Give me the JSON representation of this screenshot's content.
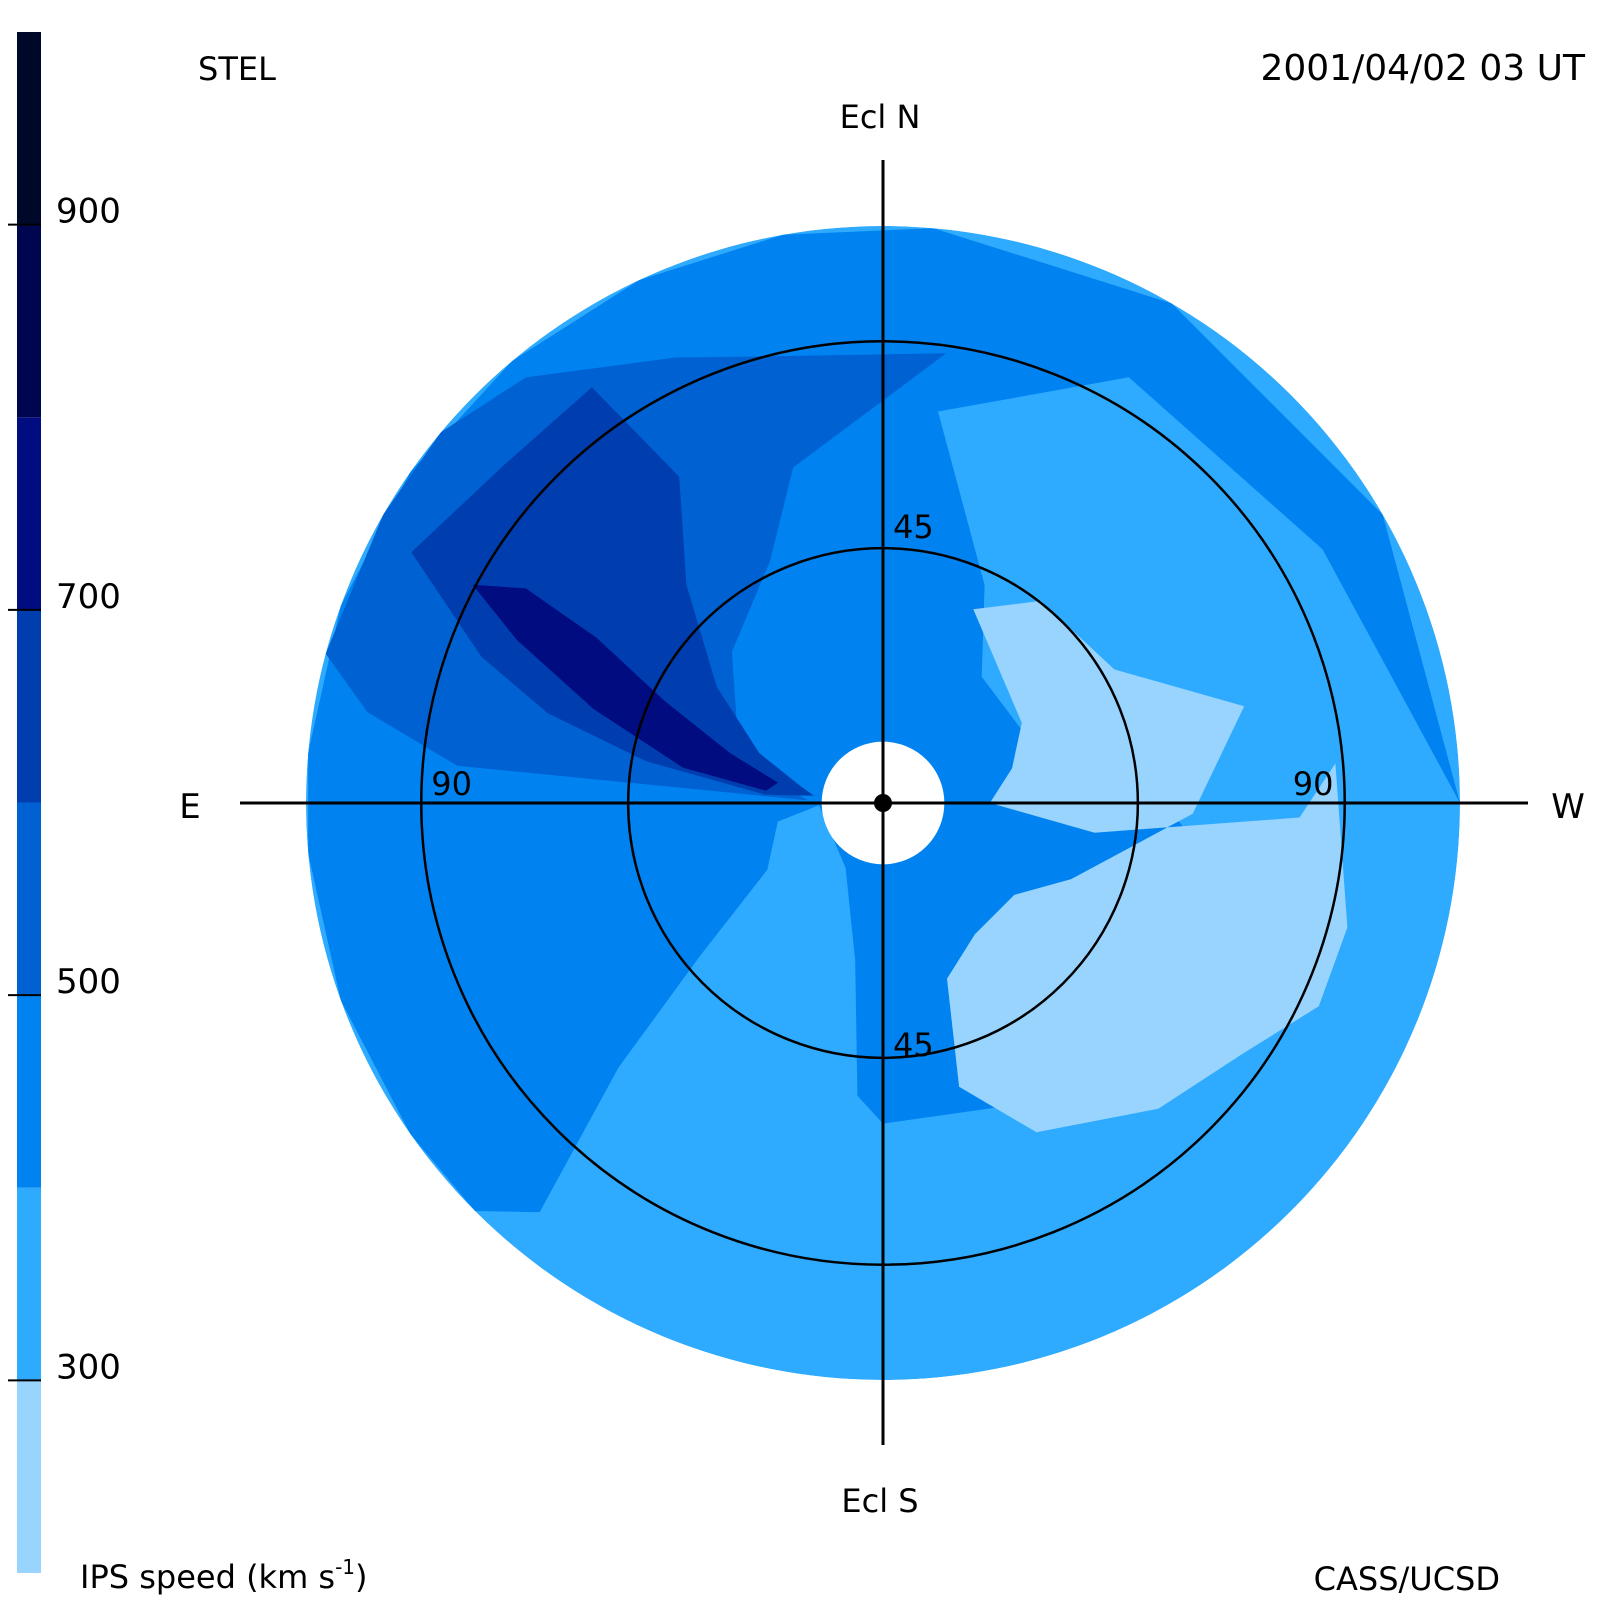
{
  "header": {
    "source": "STEL",
    "timestamp": "2001/04/02 03 UT"
  },
  "footer": {
    "credit": "CASS/UCSD"
  },
  "chart_data": {
    "type": "heatmap",
    "projection": "polar sky map centred on the Sun",
    "direction_labels": {
      "north": "Ecl N",
      "south": "Ecl S",
      "east": "E",
      "west": "W"
    },
    "elongation_circles": [
      {
        "value": 45,
        "labels": [
          "45",
          "45"
        ]
      },
      {
        "value": 90,
        "labels": [
          "90",
          "90"
        ]
      }
    ],
    "outer_elongation": 108,
    "occulted_elongation": 12,
    "colorbar": {
      "title": "IPS speed (km s",
      "title_sup": "-1",
      "title_end": ")",
      "range": [
        200,
        1000
      ],
      "ticks": [
        300,
        500,
        700,
        900
      ],
      "tick_labels": [
        "300",
        "500",
        "700",
        "900"
      ],
      "levels": [
        {
          "from": 200,
          "to": 300,
          "color": "#99d4ff"
        },
        {
          "from": 300,
          "to": 400,
          "color": "#2eaaff"
        },
        {
          "from": 400,
          "to": 500,
          "color": "#0083f0"
        },
        {
          "from": 500,
          "to": 600,
          "color": "#0061d3"
        },
        {
          "from": 600,
          "to": 700,
          "color": "#003eaf"
        },
        {
          "from": 700,
          "to": 800,
          "color": "#000c80"
        },
        {
          "from": 800,
          "to": 900,
          "color": "#000550"
        },
        {
          "from": 900,
          "to": 1000,
          "color": "#00082a"
        }
      ]
    },
    "background_speed": 350,
    "speed_regions": [
      {
        "speed": 450,
        "outline": [
          [
            270,
            108
          ],
          [
            300,
            108
          ],
          [
            330,
            108
          ],
          [
            355,
            108
          ],
          [
            10,
            108
          ],
          [
            25,
            108
          ],
          [
            40,
            108
          ],
          [
            55,
            108
          ],
          [
            70,
            108
          ],
          [
            85,
            108
          ],
          [
            95,
            108
          ],
          [
            110,
            108
          ],
          [
            125,
            108
          ],
          [
            135,
            108
          ],
          [
            140,
            100
          ],
          [
            135,
            70
          ],
          [
            130,
            45
          ],
          [
            120,
            25
          ],
          [
            100,
            20
          ],
          [
            92,
            12
          ],
          [
            150,
            14
          ],
          [
            170,
            30
          ],
          [
            175,
            55
          ],
          [
            180,
            60
          ],
          [
            220,
            70
          ],
          [
            260,
            62
          ],
          [
            278,
            48
          ],
          [
            290,
            38
          ],
          [
            292,
            30
          ],
          [
            322,
            30
          ],
          [
            335,
            45
          ],
          [
            352,
            74
          ],
          [
            330,
            92
          ],
          [
            300,
            95
          ]
        ]
      },
      {
        "speed": 550,
        "outline": [
          [
            352,
            85
          ],
          [
            10,
            85
          ],
          [
            25,
            92
          ],
          [
            40,
            104
          ],
          [
            50,
            108
          ],
          [
            60,
            108
          ],
          [
            75,
            108
          ],
          [
            80,
            98
          ],
          [
            85,
            80
          ],
          [
            88,
            14
          ],
          [
            80,
            20
          ],
          [
            65,
            30
          ],
          [
            45,
            40
          ],
          [
            25,
            50
          ],
          [
            15,
            65
          ]
        ]
      },
      {
        "speed": 650,
        "outline": [
          [
            35,
            95
          ],
          [
            48,
            95
          ],
          [
            62,
            100
          ],
          [
            70,
            80
          ],
          [
            75,
            65
          ],
          [
            80,
            45
          ],
          [
            86,
            22
          ],
          [
            84,
            13
          ],
          [
            78,
            16
          ],
          [
            68,
            25
          ],
          [
            55,
            38
          ],
          [
            42,
            55
          ],
          [
            32,
            72
          ]
        ]
      },
      {
        "speed": 750,
        "outline": [
          [
            62,
            87
          ],
          [
            66,
            75
          ],
          [
            72,
            57
          ],
          [
            80,
            38
          ],
          [
            84,
            22
          ],
          [
            79,
            20
          ],
          [
            72,
            30
          ],
          [
            65,
            45
          ],
          [
            60,
            62
          ],
          [
            59,
            78
          ]
        ]
      },
      {
        "speed": 250,
        "outline": [
          [
            255,
            90
          ],
          [
            245,
            90
          ],
          [
            235,
            82
          ],
          [
            222,
            77
          ],
          [
            205,
            68
          ],
          [
            195,
            55
          ],
          [
            200,
            35
          ],
          [
            215,
            30
          ],
          [
            235,
            30
          ],
          [
            248,
            38
          ],
          [
            268,
            58
          ],
          [
            285,
            70
          ],
          [
            300,
            50
          ],
          [
            322,
            48
          ],
          [
            335,
            40
          ],
          [
            300,
            30
          ],
          [
            285,
            25
          ],
          [
            270,
            20
          ],
          [
            262,
            40
          ],
          [
            268,
            78
          ],
          [
            275,
            85
          ]
        ]
      }
    ]
  }
}
